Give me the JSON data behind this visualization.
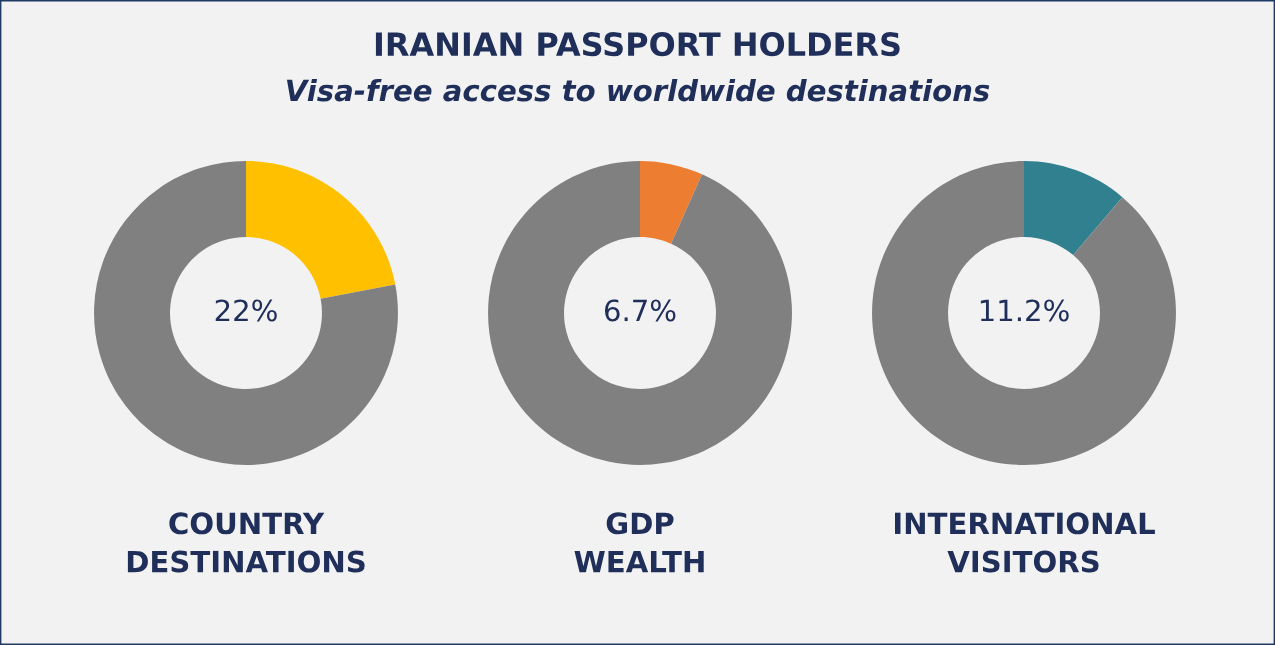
{
  "chart_data": [
    {
      "type": "donut",
      "xlabel": "COUNTRY\nDESTINATIONS",
      "categories": [
        null,
        null
      ],
      "values": [
        22,
        78
      ],
      "colors": [
        "#ffc000",
        "#808080"
      ],
      "value_labels": [
        "22%",
        null
      ]
    },
    {
      "type": "donut",
      "title": "IRANIAN PASSPORT HOLDERS",
      "subtitle": "Visa-free access to worldwide destinations",
      "xlabel": "GDP\nWEALTH",
      "categories": [
        null,
        null
      ],
      "values": [
        6.7,
        93.3
      ],
      "colors": [
        "#ed7d31",
        "#808080"
      ],
      "value_labels": [
        "6.7%",
        null
      ]
    },
    {
      "type": "donut",
      "xlabel": "INTERNATIONAL\nVISITORS",
      "categories": [
        null,
        null
      ],
      "values": [
        11.2,
        88.8
      ],
      "colors": [
        "#31808f",
        "#808080"
      ],
      "value_labels": [
        "11.2%",
        null
      ]
    }
  ]
}
